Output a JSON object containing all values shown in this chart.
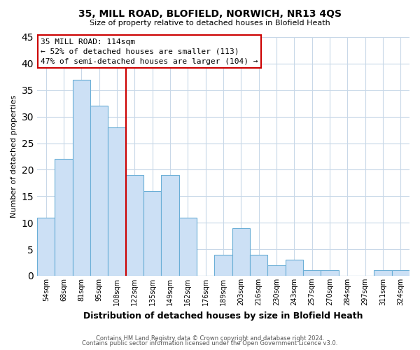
{
  "title": "35, MILL ROAD, BLOFIELD, NORWICH, NR13 4QS",
  "subtitle": "Size of property relative to detached houses in Blofield Heath",
  "xlabel": "Distribution of detached houses by size in Blofield Heath",
  "ylabel": "Number of detached properties",
  "footer_line1": "Contains HM Land Registry data © Crown copyright and database right 2024.",
  "footer_line2": "Contains public sector information licensed under the Open Government Licence v3.0.",
  "bin_labels": [
    "54sqm",
    "68sqm",
    "81sqm",
    "95sqm",
    "108sqm",
    "122sqm",
    "135sqm",
    "149sqm",
    "162sqm",
    "176sqm",
    "189sqm",
    "203sqm",
    "216sqm",
    "230sqm",
    "243sqm",
    "257sqm",
    "270sqm",
    "284sqm",
    "297sqm",
    "311sqm",
    "324sqm"
  ],
  "bar_heights": [
    11,
    22,
    37,
    32,
    28,
    19,
    16,
    19,
    11,
    0,
    4,
    9,
    4,
    2,
    3,
    1,
    1,
    0,
    0,
    1,
    1
  ],
  "bar_color": "#cce0f5",
  "bar_edge_color": "#6aaed6",
  "reference_line_color": "#cc0000",
  "annotation_text_line1": "35 MILL ROAD: 114sqm",
  "annotation_text_line2": "← 52% of detached houses are smaller (113)",
  "annotation_text_line3": "47% of semi-detached houses are larger (104) →",
  "ylim": [
    0,
    45
  ],
  "yticks": [
    0,
    5,
    10,
    15,
    20,
    25,
    30,
    35,
    40,
    45
  ],
  "grid_color": "#c8d8e8",
  "title_fontsize": 10,
  "subtitle_fontsize": 8,
  "xlabel_fontsize": 9,
  "ylabel_fontsize": 8,
  "tick_fontsize": 7,
  "annotation_fontsize": 8,
  "footer_fontsize": 6
}
